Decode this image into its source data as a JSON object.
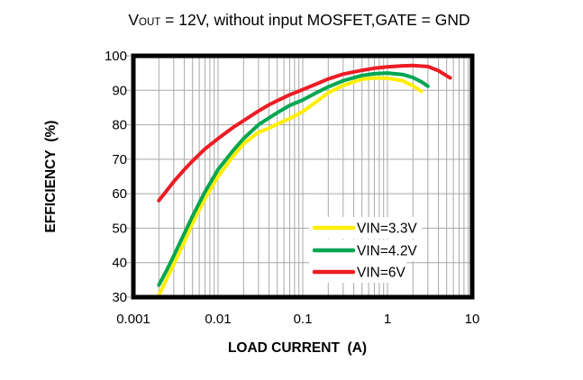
{
  "title": {
    "prefix": "V",
    "sub": "OUT",
    "rest": " = 12V, without input MOSFET,GATE = GND"
  },
  "axes": {
    "x_label": "LOAD CURRENT  (A)",
    "y_label": "EFFICIENCY  (%)"
  },
  "chart_data": {
    "type": "line",
    "x_scale": "log",
    "xlabel": "LOAD CURRENT (A)",
    "ylabel": "EFFICIENCY (%)",
    "xlim": [
      0.001,
      10
    ],
    "ylim": [
      30,
      100
    ],
    "x_tick_values": [
      0.001,
      0.01,
      0.1,
      1,
      10
    ],
    "x_tick_labels": [
      "0.001",
      "0.01",
      "0.1",
      "1",
      "10"
    ],
    "y_tick_values": [
      30,
      40,
      50,
      60,
      70,
      80,
      90,
      100
    ],
    "y_tick_labels": [
      "30",
      "40",
      "50",
      "60",
      "70",
      "80",
      "90",
      "100"
    ],
    "grid": {
      "show": true,
      "minor_log_x": true,
      "color": "#a8a8a8"
    },
    "frame_color": "#000000",
    "legend": {
      "position": "inside-lower-right"
    },
    "series": [
      {
        "name": "VIN=3.3V",
        "color": "#ffee00",
        "points": [
          [
            0.002,
            30.5
          ],
          [
            0.0025,
            35.5
          ],
          [
            0.003,
            39.5
          ],
          [
            0.004,
            46
          ],
          [
            0.005,
            51.5
          ],
          [
            0.007,
            58.5
          ],
          [
            0.01,
            65
          ],
          [
            0.015,
            70.8
          ],
          [
            0.02,
            74.5
          ],
          [
            0.03,
            77.8
          ],
          [
            0.04,
            79
          ],
          [
            0.05,
            80.2
          ],
          [
            0.07,
            81.8
          ],
          [
            0.1,
            83.8
          ],
          [
            0.15,
            87
          ],
          [
            0.2,
            89.3
          ],
          [
            0.3,
            91.4
          ],
          [
            0.5,
            93.2
          ],
          [
            0.7,
            93.6
          ],
          [
            1,
            93.5
          ],
          [
            1.5,
            92.8
          ],
          [
            2,
            91.3
          ],
          [
            2.5,
            89.7
          ]
        ]
      },
      {
        "name": "VIN=4.2V",
        "color": "#00a651",
        "points": [
          [
            0.002,
            33.5
          ],
          [
            0.0025,
            38
          ],
          [
            0.003,
            42
          ],
          [
            0.004,
            48.5
          ],
          [
            0.005,
            53.5
          ],
          [
            0.007,
            60.5
          ],
          [
            0.01,
            67
          ],
          [
            0.015,
            72.5
          ],
          [
            0.02,
            76
          ],
          [
            0.03,
            80
          ],
          [
            0.04,
            82
          ],
          [
            0.05,
            83.5
          ],
          [
            0.07,
            85.6
          ],
          [
            0.1,
            87.2
          ],
          [
            0.15,
            89.5
          ],
          [
            0.2,
            91
          ],
          [
            0.3,
            92.8
          ],
          [
            0.5,
            94.3
          ],
          [
            0.7,
            94.8
          ],
          [
            1,
            95
          ],
          [
            1.5,
            94.6
          ],
          [
            2,
            93.7
          ],
          [
            2.5,
            92.5
          ],
          [
            3,
            91.2
          ]
        ]
      },
      {
        "name": "VIN=6V",
        "color": "#ed1c24",
        "points": [
          [
            0.002,
            58
          ],
          [
            0.0025,
            61
          ],
          [
            0.003,
            63.5
          ],
          [
            0.004,
            67
          ],
          [
            0.005,
            69.5
          ],
          [
            0.007,
            73
          ],
          [
            0.01,
            76
          ],
          [
            0.015,
            79.2
          ],
          [
            0.02,
            81.2
          ],
          [
            0.03,
            84
          ],
          [
            0.04,
            85.8
          ],
          [
            0.05,
            87
          ],
          [
            0.07,
            88.7
          ],
          [
            0.1,
            90.2
          ],
          [
            0.15,
            92
          ],
          [
            0.2,
            93.3
          ],
          [
            0.3,
            94.7
          ],
          [
            0.5,
            95.8
          ],
          [
            0.7,
            96.4
          ],
          [
            1,
            96.8
          ],
          [
            1.5,
            97.1
          ],
          [
            2,
            97.2
          ],
          [
            3,
            96.9
          ],
          [
            4,
            95.7
          ],
          [
            5,
            94.2
          ],
          [
            5.5,
            93.6
          ]
        ]
      }
    ]
  }
}
